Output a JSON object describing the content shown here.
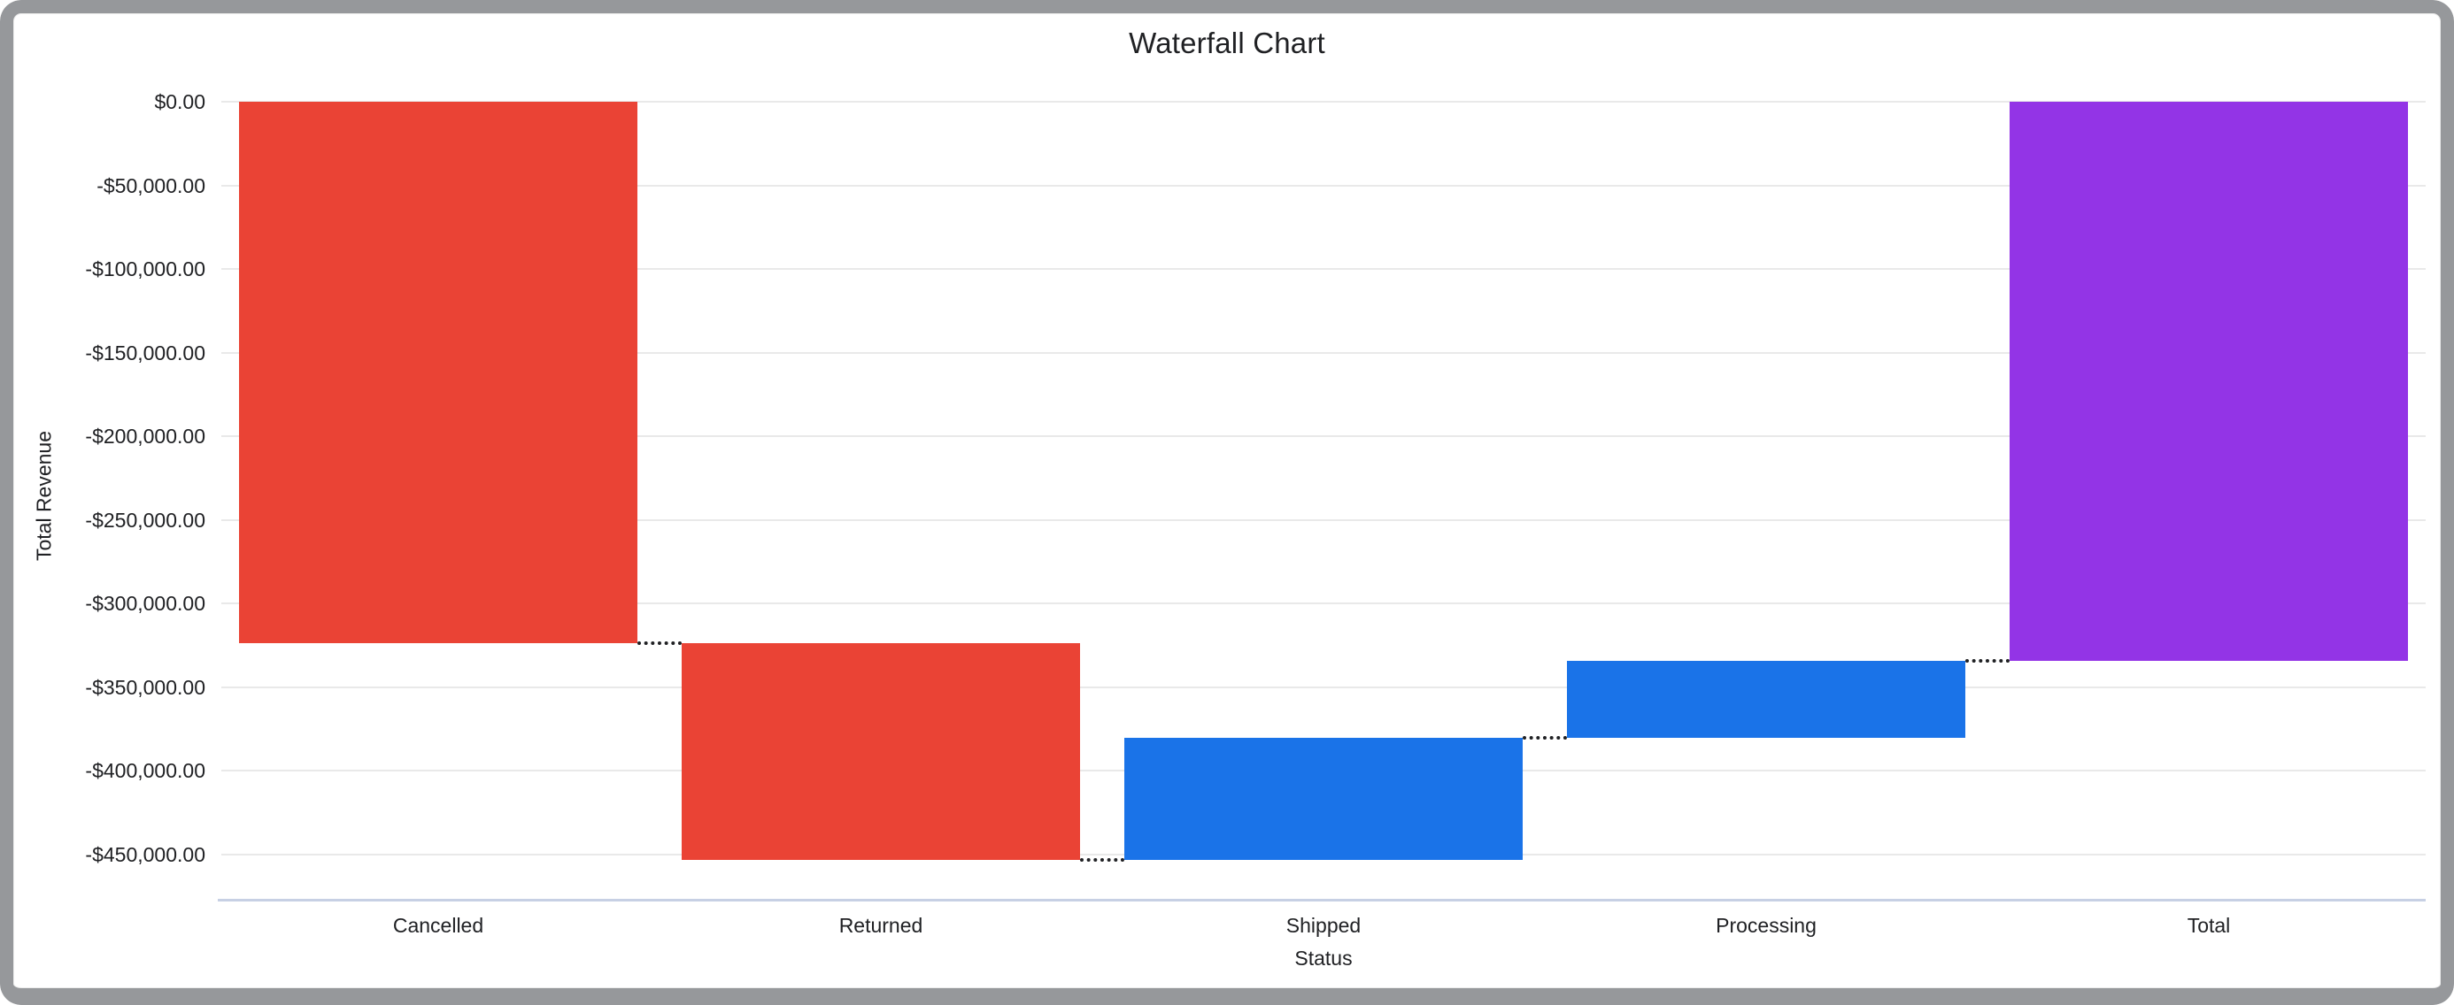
{
  "window": {
    "frame_color": "#96989b",
    "background_color": "#ffffff"
  },
  "chart_data": {
    "type": "waterfall",
    "title": "Waterfall Chart",
    "xlabel": "Status",
    "ylabel": "Total Revenue",
    "categories": [
      "Cancelled",
      "Returned",
      "Shipped",
      "Processing",
      "Total"
    ],
    "bars": [
      {
        "label": "Cancelled",
        "value": -323800,
        "kind": "decrease",
        "cumulative_start": 0,
        "cumulative_end": -323800
      },
      {
        "label": "Returned",
        "value": -129200,
        "kind": "decrease",
        "cumulative_start": -323800,
        "cumulative_end": -453000
      },
      {
        "label": "Shipped",
        "value": 72800,
        "kind": "increase",
        "cumulative_start": -453000,
        "cumulative_end": -380200
      },
      {
        "label": "Processing",
        "value": 45800,
        "kind": "increase",
        "cumulative_start": -380200,
        "cumulative_end": -334400
      },
      {
        "label": "Total",
        "value": -334400,
        "kind": "total",
        "cumulative_start": 0,
        "cumulative_end": -334400
      }
    ],
    "y_ticks": [
      {
        "label": "$0.00",
        "value": 0
      },
      {
        "label": "-$50,000.00",
        "value": -50000
      },
      {
        "label": "-$100,000.00",
        "value": -100000
      },
      {
        "label": "-$150,000.00",
        "value": -150000
      },
      {
        "label": "-$200,000.00",
        "value": -200000
      },
      {
        "label": "-$250,000.00",
        "value": -250000
      },
      {
        "label": "-$300,000.00",
        "value": -300000
      },
      {
        "label": "-$350,000.00",
        "value": -350000
      },
      {
        "label": "-$400,000.00",
        "value": -400000
      },
      {
        "label": "-$450,000.00",
        "value": -450000
      }
    ],
    "ylim": [
      -476400,
      0
    ],
    "grid": true,
    "legend": "none",
    "colors": {
      "decrease": "#EA4335",
      "increase": "#1A73E8",
      "total": "#9334E6",
      "connector": "#202124",
      "gridline": "#e9e9e9",
      "axis_line": "#c7d0e4",
      "text": "#202124"
    }
  }
}
